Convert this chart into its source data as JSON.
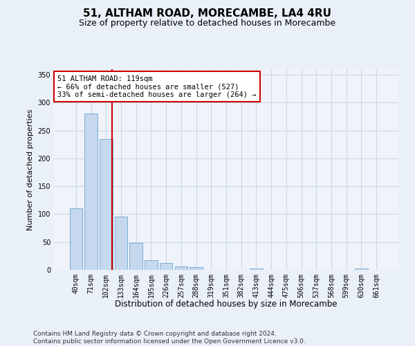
{
  "title": "51, ALTHAM ROAD, MORECAMBE, LA4 4RU",
  "subtitle": "Size of property relative to detached houses in Morecambe",
  "xlabel": "Distribution of detached houses by size in Morecambe",
  "ylabel": "Number of detached properties",
  "categories": [
    "40sqm",
    "71sqm",
    "102sqm",
    "133sqm",
    "164sqm",
    "195sqm",
    "226sqm",
    "257sqm",
    "288sqm",
    "319sqm",
    "351sqm",
    "382sqm",
    "413sqm",
    "444sqm",
    "475sqm",
    "506sqm",
    "537sqm",
    "568sqm",
    "599sqm",
    "630sqm",
    "661sqm"
  ],
  "values": [
    110,
    280,
    235,
    95,
    48,
    18,
    12,
    6,
    5,
    0,
    0,
    0,
    3,
    0,
    0,
    0,
    0,
    0,
    0,
    3,
    0
  ],
  "bar_color": "#c5d8ed",
  "bar_edge_color": "#7aadd4",
  "vline_x": 2.42,
  "vline_color": "#cc0000",
  "annotation_text": "51 ALTHAM ROAD: 119sqm\n← 66% of detached houses are smaller (527)\n33% of semi-detached houses are larger (264) →",
  "annotation_box_color": "white",
  "annotation_box_edge_color": "#cc0000",
  "ylim": [
    0,
    360
  ],
  "yticks": [
    0,
    50,
    100,
    150,
    200,
    250,
    300,
    350
  ],
  "grid_color": "#c8d8e8",
  "bg_color": "#eaf0f8",
  "plot_bg_color": "#f0f4fa",
  "footer": "Contains HM Land Registry data © Crown copyright and database right 2024.\nContains public sector information licensed under the Open Government Licence v3.0.",
  "title_fontsize": 11,
  "subtitle_fontsize": 9,
  "annotation_fontsize": 7.5,
  "tick_fontsize": 7,
  "ylabel_fontsize": 8,
  "xlabel_fontsize": 8.5,
  "footer_fontsize": 6.5
}
